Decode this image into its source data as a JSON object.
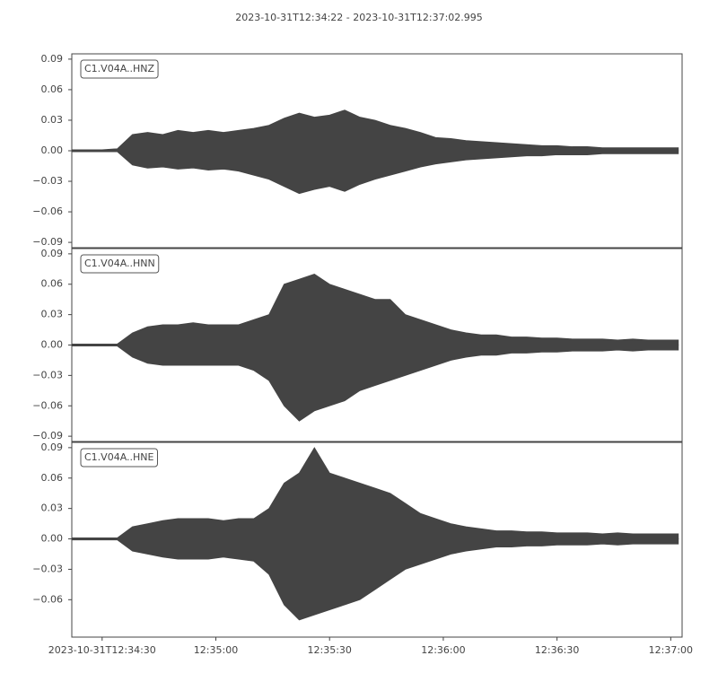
{
  "title": "2023-10-31T12:34:22  -  2023-10-31T12:37:02.995",
  "chart_data": [
    {
      "type": "area",
      "label": "C1.V04A..HNZ",
      "color": "#444444",
      "xlim": [
        "2023-10-31T12:34:22",
        "2023-10-31T12:37:02.995"
      ],
      "ylim": [
        -0.0952,
        0.0952
      ],
      "yticks": [
        {
          "value": -0.09,
          "label": "−0.09"
        },
        {
          "value": -0.06,
          "label": "−0.06"
        },
        {
          "value": -0.03,
          "label": "−0.03"
        },
        {
          "value": 0,
          "label": "0.00"
        },
        {
          "value": 0.03,
          "label": "0.03"
        },
        {
          "value": 0.06,
          "label": "0.06"
        },
        {
          "value": 0.09,
          "label": "0.09"
        }
      ],
      "x": [
        "2023-10-31T12:34:22",
        "2023-10-31T12:34:26",
        "2023-10-31T12:34:30",
        "2023-10-31T12:34:34",
        "2023-10-31T12:34:38",
        "2023-10-31T12:34:42",
        "2023-10-31T12:34:46",
        "2023-10-31T12:34:50",
        "2023-10-31T12:34:54",
        "2023-10-31T12:34:58",
        "2023-10-31T12:35:02",
        "2023-10-31T12:35:06",
        "2023-10-31T12:35:10",
        "2023-10-31T12:35:14",
        "2023-10-31T12:35:18",
        "2023-10-31T12:35:22",
        "2023-10-31T12:35:26",
        "2023-10-31T12:35:30",
        "2023-10-31T12:35:34",
        "2023-10-31T12:35:38",
        "2023-10-31T12:35:42",
        "2023-10-31T12:35:46",
        "2023-10-31T12:35:50",
        "2023-10-31T12:35:54",
        "2023-10-31T12:35:58",
        "2023-10-31T12:36:02",
        "2023-10-31T12:36:06",
        "2023-10-31T12:36:10",
        "2023-10-31T12:36:14",
        "2023-10-31T12:36:18",
        "2023-10-31T12:36:22",
        "2023-10-31T12:36:26",
        "2023-10-31T12:36:30",
        "2023-10-31T12:36:34",
        "2023-10-31T12:36:38",
        "2023-10-31T12:36:42",
        "2023-10-31T12:36:46",
        "2023-10-31T12:36:50",
        "2023-10-31T12:36:54",
        "2023-10-31T12:36:58",
        "2023-10-31T12:37:02"
      ],
      "series": [
        {
          "values": [
            0.001,
            0.001,
            0.001,
            0.002,
            0.016,
            0.018,
            0.016,
            0.02,
            0.018,
            0.02,
            0.018,
            0.02,
            0.022,
            0.025,
            0.032,
            0.037,
            0.033,
            0.035,
            0.04,
            0.033,
            0.03,
            0.025,
            0.022,
            0.018,
            0.013,
            0.012,
            0.01,
            0.009,
            0.008,
            0.007,
            0.006,
            0.005,
            0.005,
            0.004,
            0.004,
            0.003,
            0.003,
            0.003,
            0.003,
            0.003,
            0.003
          ]
        },
        {
          "values": [
            -0.001,
            -0.001,
            -0.001,
            -0.001,
            -0.014,
            -0.017,
            -0.016,
            -0.018,
            -0.017,
            -0.019,
            -0.018,
            -0.02,
            -0.024,
            -0.028,
            -0.035,
            -0.042,
            -0.038,
            -0.035,
            -0.04,
            -0.033,
            -0.028,
            -0.024,
            -0.02,
            -0.016,
            -0.013,
            -0.011,
            -0.009,
            -0.008,
            -0.007,
            -0.006,
            -0.005,
            -0.005,
            -0.004,
            -0.004,
            -0.004,
            -0.003,
            -0.003,
            -0.003,
            -0.003,
            -0.003,
            -0.003
          ]
        }
      ]
    },
    {
      "type": "area",
      "label": "C1.V04A..HNN",
      "color": "#444444",
      "xlim": [
        "2023-10-31T12:34:22",
        "2023-10-31T12:37:02.995"
      ],
      "ylim": [
        -0.0952,
        0.0952
      ],
      "yticks": [
        {
          "value": -0.09,
          "label": "−0.09"
        },
        {
          "value": -0.06,
          "label": "−0.06"
        },
        {
          "value": -0.03,
          "label": "−0.03"
        },
        {
          "value": 0,
          "label": "0.00"
        },
        {
          "value": 0.03,
          "label": "0.03"
        },
        {
          "value": 0.06,
          "label": "0.06"
        },
        {
          "value": 0.09,
          "label": "0.09"
        }
      ],
      "x": [
        "2023-10-31T12:34:22",
        "2023-10-31T12:34:26",
        "2023-10-31T12:34:30",
        "2023-10-31T12:34:34",
        "2023-10-31T12:34:38",
        "2023-10-31T12:34:42",
        "2023-10-31T12:34:46",
        "2023-10-31T12:34:50",
        "2023-10-31T12:34:54",
        "2023-10-31T12:34:58",
        "2023-10-31T12:35:02",
        "2023-10-31T12:35:06",
        "2023-10-31T12:35:10",
        "2023-10-31T12:35:14",
        "2023-10-31T12:35:18",
        "2023-10-31T12:35:22",
        "2023-10-31T12:35:26",
        "2023-10-31T12:35:30",
        "2023-10-31T12:35:34",
        "2023-10-31T12:35:38",
        "2023-10-31T12:35:42",
        "2023-10-31T12:35:46",
        "2023-10-31T12:35:50",
        "2023-10-31T12:35:54",
        "2023-10-31T12:35:58",
        "2023-10-31T12:36:02",
        "2023-10-31T12:36:06",
        "2023-10-31T12:36:10",
        "2023-10-31T12:36:14",
        "2023-10-31T12:36:18",
        "2023-10-31T12:36:22",
        "2023-10-31T12:36:26",
        "2023-10-31T12:36:30",
        "2023-10-31T12:36:34",
        "2023-10-31T12:36:38",
        "2023-10-31T12:36:42",
        "2023-10-31T12:36:46",
        "2023-10-31T12:36:50",
        "2023-10-31T12:36:54",
        "2023-10-31T12:36:58",
        "2023-10-31T12:37:02"
      ],
      "series": [
        {
          "values": [
            0.001,
            0.001,
            0.001,
            0.001,
            0.012,
            0.018,
            0.02,
            0.02,
            0.022,
            0.02,
            0.02,
            0.02,
            0.025,
            0.03,
            0.06,
            0.065,
            0.07,
            0.06,
            0.055,
            0.05,
            0.045,
            0.045,
            0.03,
            0.025,
            0.02,
            0.015,
            0.012,
            0.01,
            0.01,
            0.008,
            0.008,
            0.007,
            0.007,
            0.006,
            0.006,
            0.006,
            0.005,
            0.006,
            0.005,
            0.005,
            0.005
          ]
        },
        {
          "values": [
            -0.001,
            -0.001,
            -0.001,
            -0.001,
            -0.012,
            -0.018,
            -0.02,
            -0.02,
            -0.02,
            -0.02,
            -0.02,
            -0.02,
            -0.025,
            -0.035,
            -0.06,
            -0.075,
            -0.065,
            -0.06,
            -0.055,
            -0.045,
            -0.04,
            -0.035,
            -0.03,
            -0.025,
            -0.02,
            -0.015,
            -0.012,
            -0.01,
            -0.01,
            -0.008,
            -0.008,
            -0.007,
            -0.007,
            -0.006,
            -0.006,
            -0.006,
            -0.005,
            -0.006,
            -0.005,
            -0.005,
            -0.005
          ]
        }
      ]
    },
    {
      "type": "area",
      "label": "C1.V04A..HNE",
      "color": "#444444",
      "xlim": [
        "2023-10-31T12:34:22",
        "2023-10-31T12:37:02.995"
      ],
      "ylim": [
        -0.0969,
        0.0952
      ],
      "yticks": [
        {
          "value": -0.06,
          "label": "−0.06"
        },
        {
          "value": -0.03,
          "label": "−0.03"
        },
        {
          "value": 0,
          "label": "0.00"
        },
        {
          "value": 0.03,
          "label": "0.03"
        },
        {
          "value": 0.06,
          "label": "0.06"
        },
        {
          "value": 0.09,
          "label": "0.09"
        }
      ],
      "xticks": [
        "2023-10-31T12:34:30",
        {
          "value": "2023-10-31T12:35:00",
          "label": "12:35:00"
        },
        {
          "value": "2023-10-31T12:35:30",
          "label": "12:35:30"
        },
        {
          "value": "2023-10-31T12:36:00",
          "label": "12:36:00"
        },
        {
          "value": "2023-10-31T12:36:30",
          "label": "12:36:30"
        },
        {
          "value": "2023-10-31T12:37:00",
          "label": "12:37:00"
        }
      ],
      "x": [
        "2023-10-31T12:34:22",
        "2023-10-31T12:34:26",
        "2023-10-31T12:34:30",
        "2023-10-31T12:34:34",
        "2023-10-31T12:34:38",
        "2023-10-31T12:34:42",
        "2023-10-31T12:34:46",
        "2023-10-31T12:34:50",
        "2023-10-31T12:34:54",
        "2023-10-31T12:34:58",
        "2023-10-31T12:35:02",
        "2023-10-31T12:35:06",
        "2023-10-31T12:35:10",
        "2023-10-31T12:35:14",
        "2023-10-31T12:35:18",
        "2023-10-31T12:35:22",
        "2023-10-31T12:35:26",
        "2023-10-31T12:35:30",
        "2023-10-31T12:35:34",
        "2023-10-31T12:35:38",
        "2023-10-31T12:35:42",
        "2023-10-31T12:35:46",
        "2023-10-31T12:35:50",
        "2023-10-31T12:35:54",
        "2023-10-31T12:35:58",
        "2023-10-31T12:36:02",
        "2023-10-31T12:36:06",
        "2023-10-31T12:36:10",
        "2023-10-31T12:36:14",
        "2023-10-31T12:36:18",
        "2023-10-31T12:36:22",
        "2023-10-31T12:36:26",
        "2023-10-31T12:36:30",
        "2023-10-31T12:36:34",
        "2023-10-31T12:36:38",
        "2023-10-31T12:36:42",
        "2023-10-31T12:36:46",
        "2023-10-31T12:36:50",
        "2023-10-31T12:36:54",
        "2023-10-31T12:36:58",
        "2023-10-31T12:37:02"
      ],
      "series": [
        {
          "values": [
            0.001,
            0.001,
            0.001,
            0.001,
            0.012,
            0.015,
            0.018,
            0.02,
            0.02,
            0.02,
            0.018,
            0.02,
            0.02,
            0.03,
            0.055,
            0.065,
            0.09,
            0.065,
            0.06,
            0.055,
            0.05,
            0.045,
            0.035,
            0.025,
            0.02,
            0.015,
            0.012,
            0.01,
            0.008,
            0.008,
            0.007,
            0.007,
            0.006,
            0.006,
            0.006,
            0.005,
            0.006,
            0.005,
            0.005,
            0.005,
            0.005
          ]
        },
        {
          "values": [
            -0.001,
            -0.001,
            -0.001,
            -0.001,
            -0.012,
            -0.015,
            -0.018,
            -0.02,
            -0.02,
            -0.02,
            -0.018,
            -0.02,
            -0.022,
            -0.035,
            -0.065,
            -0.08,
            -0.075,
            -0.07,
            -0.065,
            -0.06,
            -0.05,
            -0.04,
            -0.03,
            -0.025,
            -0.02,
            -0.015,
            -0.012,
            -0.01,
            -0.008,
            -0.008,
            -0.007,
            -0.007,
            -0.006,
            -0.006,
            -0.006,
            -0.005,
            -0.006,
            -0.005,
            -0.005,
            -0.005,
            -0.005
          ]
        }
      ]
    }
  ]
}
